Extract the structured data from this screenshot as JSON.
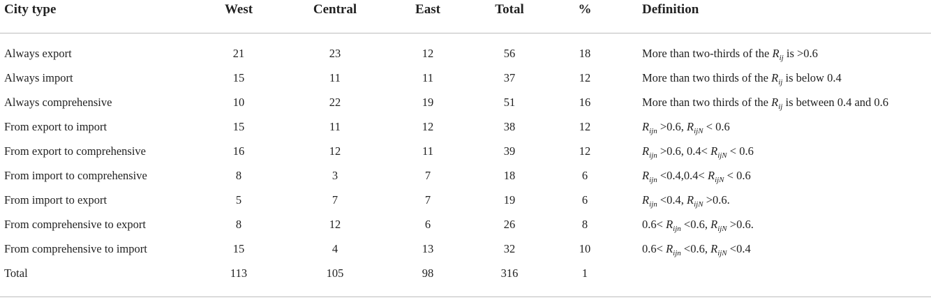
{
  "table": {
    "header": [
      "City type",
      "West",
      "Central",
      "East",
      "Total",
      "%",
      "Definition"
    ],
    "rows": [
      [
        "Always export",
        21,
        23,
        12,
        56,
        18
      ],
      [
        "Always import",
        15,
        11,
        11,
        37,
        12
      ],
      [
        "Always comprehensive",
        10,
        22,
        19,
        51,
        16
      ],
      [
        "From export to import",
        15,
        11,
        12,
        38,
        12
      ],
      [
        "From export to comprehensive",
        16,
        12,
        11,
        39,
        12
      ],
      [
        "From import to comprehensive",
        8,
        3,
        7,
        18,
        6
      ],
      [
        "From import to export",
        5,
        7,
        7,
        19,
        6
      ],
      [
        "From comprehensive to export",
        8,
        12,
        6,
        26,
        8
      ],
      [
        "From comprehensive to import",
        15,
        4,
        13,
        32,
        10
      ],
      [
        "Total",
        113,
        105,
        98,
        316,
        1
      ]
    ],
    "definitions": [
      [
        "More than two-thirds of the ",
        {
          "base": "R",
          "sub": "ij"
        },
        " is >0.6"
      ],
      [
        "More than two thirds of the ",
        {
          "base": "R",
          "sub": "ij"
        },
        " is below 0.4"
      ],
      [
        "More than two thirds of the ",
        {
          "base": "R",
          "sub": "ij"
        },
        " is between 0.4 and 0.6"
      ],
      [
        {
          "base": "R",
          "sub": "ijn"
        },
        " >0.6, ",
        {
          "base": "R",
          "sub": "ijN"
        },
        " < 0.6"
      ],
      [
        {
          "base": "R",
          "sub": "ijn"
        },
        " >0.6, 0.4< ",
        {
          "base": "R",
          "sub": "ijN"
        },
        " < 0.6"
      ],
      [
        {
          "base": "R",
          "sub": "ijn"
        },
        " <0.4,0.4< ",
        {
          "base": "R",
          "sub": "ijN"
        },
        " < 0.6"
      ],
      [
        {
          "base": "R",
          "sub": "ijn"
        },
        " <0.4, ",
        {
          "base": "R",
          "sub": "ijN"
        },
        " >0.6."
      ],
      [
        "0.6< ",
        {
          "base": "R",
          "sub": "ijn"
        },
        " <0.6, ",
        {
          "base": "R",
          "sub": "ijN"
        },
        " >0.6."
      ],
      [
        "0.6< ",
        {
          "base": "R",
          "sub": "ijn"
        },
        " <0.6, ",
        {
          "base": "R",
          "sub": "ijN"
        },
        " <0.4"
      ]
    ]
  }
}
